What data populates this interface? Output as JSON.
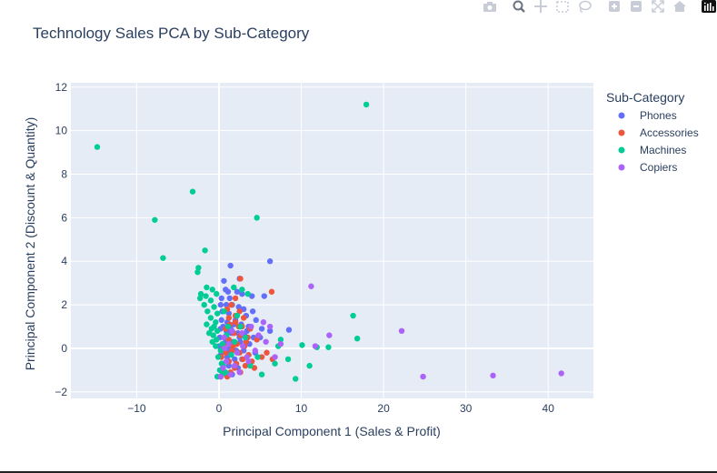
{
  "chart_data": {
    "type": "scatter",
    "title": "Technology Sales PCA by Sub-Category",
    "xlabel": "Principal Component 1 (Sales & Profit)",
    "ylabel": "Principal Component 2 (Discount & Quantity)",
    "xlim": [
      -18,
      45.5
    ],
    "ylim": [
      -2.3,
      12.2
    ],
    "xticks": [
      -10,
      0,
      10,
      20,
      30,
      40
    ],
    "yticks": [
      -2,
      0,
      2,
      4,
      6,
      8,
      10,
      12
    ],
    "grid": true,
    "legend_title": "Sub-Category",
    "legend_position": "top-right outside",
    "series": [
      {
        "name": "Phones",
        "color": "#636efa",
        "points": [
          [
            1.4,
            3.8
          ],
          [
            0.6,
            3.1
          ],
          [
            2.5,
            3.2
          ],
          [
            6.2,
            4.0
          ],
          [
            0.8,
            2.7
          ],
          [
            1.1,
            2.6
          ],
          [
            2.2,
            2.6
          ],
          [
            0.3,
            2.3
          ],
          [
            1.3,
            2.3
          ],
          [
            2.8,
            2.5
          ],
          [
            4,
            2.4
          ],
          [
            5.5,
            2.4
          ],
          [
            0.2,
            2.0
          ],
          [
            0.9,
            2.0
          ],
          [
            1.6,
            2.0
          ],
          [
            2.4,
            1.9
          ],
          [
            3.0,
            1.8
          ],
          [
            4.1,
            1.7
          ],
          [
            0.4,
            1.7
          ],
          [
            1.2,
            1.6
          ],
          [
            2.1,
            1.5
          ],
          [
            3.3,
            1.5
          ],
          [
            4.5,
            1.3
          ],
          [
            0.3,
            1.3
          ],
          [
            1.0,
            1.2
          ],
          [
            1.8,
            1.1
          ],
          [
            2.7,
            1.1
          ],
          [
            3.6,
            1.0
          ],
          [
            5.2,
            0.9
          ],
          [
            6.2,
            0.8
          ],
          [
            8.5,
            0.85
          ],
          [
            0.2,
            0.9
          ],
          [
            0.9,
            0.8
          ],
          [
            1.5,
            0.7
          ],
          [
            2.3,
            0.7
          ],
          [
            3.1,
            0.6
          ],
          [
            4.2,
            0.5
          ],
          [
            5.0,
            0.5
          ],
          [
            0.1,
            0.5
          ],
          [
            0.8,
            0.4
          ],
          [
            1.7,
            0.3
          ],
          [
            2.6,
            0.3
          ],
          [
            3.7,
            0.2
          ],
          [
            0.0,
            0.1
          ],
          [
            0.6,
            0.0
          ],
          [
            1.3,
            0.0
          ],
          [
            2.1,
            -0.1
          ],
          [
            3.0,
            -0.1
          ],
          [
            4.4,
            -0.2
          ],
          [
            0.2,
            -0.3
          ],
          [
            1.0,
            -0.4
          ],
          [
            1.9,
            -0.5
          ],
          [
            2.8,
            -0.5
          ],
          [
            0.4,
            -0.7
          ],
          [
            1.2,
            -0.8
          ],
          [
            2.3,
            -0.9
          ],
          [
            0.7,
            -1.1
          ],
          [
            1.6,
            -1.2
          ],
          [
            2.0,
            1.3
          ],
          [
            0.5,
            1.0
          ],
          [
            1.4,
            0.9
          ],
          [
            2.5,
            0.5
          ],
          [
            3.4,
            0.8
          ],
          [
            0.6,
            0.2
          ],
          [
            1.1,
            -0.2
          ]
        ]
      },
      {
        "name": "Accessories",
        "color": "#ef553b",
        "points": [
          [
            2.6,
            3.2
          ],
          [
            6.4,
            2.6
          ],
          [
            2.0,
            2.3
          ],
          [
            1.5,
            2.0
          ],
          [
            2.5,
            1.7
          ],
          [
            1.0,
            1.8
          ],
          [
            3.0,
            1.4
          ],
          [
            2.0,
            1.2
          ],
          [
            1.3,
            1.1
          ],
          [
            2.8,
            1.0
          ],
          [
            3.8,
            0.9
          ],
          [
            0.8,
            0.9
          ],
          [
            1.8,
            0.7
          ],
          [
            2.6,
            0.6
          ],
          [
            3.5,
            0.5
          ],
          [
            4.6,
            0.4
          ],
          [
            1.2,
            0.4
          ],
          [
            2.2,
            0.2
          ],
          [
            3.1,
            0.1
          ],
          [
            0.6,
            0.1
          ],
          [
            1.6,
            -0.1
          ],
          [
            2.5,
            -0.2
          ],
          [
            3.6,
            -0.3
          ],
          [
            5.2,
            -0.4
          ],
          [
            6.5,
            -0.5
          ],
          [
            0.3,
            -0.4
          ],
          [
            1.2,
            -0.6
          ],
          [
            2.1,
            -0.7
          ],
          [
            3.2,
            -0.8
          ],
          [
            4.3,
            -0.9
          ],
          [
            0.5,
            -1.0
          ],
          [
            1.4,
            -1.1
          ],
          [
            2.6,
            -1.1
          ],
          [
            0.2,
            -1.3
          ],
          [
            1.0,
            -1.3
          ],
          [
            2.0,
            1.5
          ],
          [
            1.2,
            1.4
          ],
          [
            3.3,
            0.3
          ],
          [
            2.9,
            -0.5
          ],
          [
            1.7,
            0.1
          ],
          [
            0.8,
            -0.2
          ],
          [
            2.4,
            1.0
          ],
          [
            4.0,
            -0.6
          ],
          [
            1.9,
            -0.9
          ],
          [
            5.8,
            -0.2
          ]
        ]
      },
      {
        "name": "Machines",
        "color": "#00cc96",
        "points": [
          [
            17.9,
            11.2
          ],
          [
            -14.8,
            9.25
          ],
          [
            -3.2,
            7.2
          ],
          [
            4.6,
            6.0
          ],
          [
            -7.8,
            5.9
          ],
          [
            -1.7,
            4.5
          ],
          [
            -6.8,
            4.15
          ],
          [
            -2.5,
            3.7
          ],
          [
            -2.6,
            3.5
          ],
          [
            -1.5,
            2.8
          ],
          [
            -2.2,
            2.5
          ],
          [
            -0.8,
            2.7
          ],
          [
            -1.6,
            2.4
          ],
          [
            -2.3,
            2.3
          ],
          [
            -1.0,
            2.2
          ],
          [
            -0.3,
            2.5
          ],
          [
            -1.8,
            2.0
          ],
          [
            -0.6,
            1.9
          ],
          [
            -1.4,
            1.7
          ],
          [
            -0.2,
            1.6
          ],
          [
            -1.0,
            1.4
          ],
          [
            -0.4,
            1.2
          ],
          [
            -1.5,
            1.1
          ],
          [
            -0.6,
            1.0
          ],
          [
            -0.2,
            0.8
          ],
          [
            -1.2,
            0.7
          ],
          [
            -0.7,
            0.6
          ],
          [
            -0.3,
            0.4
          ],
          [
            -0.8,
            0.3
          ],
          [
            -0.4,
            0.1
          ],
          [
            0.2,
            -0.1
          ],
          [
            -0.1,
            -0.4
          ],
          [
            0.3,
            -0.7
          ],
          [
            0.1,
            -1.0
          ],
          [
            0.4,
            -1.2
          ],
          [
            -0.2,
            -1.3
          ],
          [
            0.8,
            -1.1
          ],
          [
            0.5,
            -0.8
          ],
          [
            2.8,
            2.7
          ],
          [
            3.5,
            2.5
          ],
          [
            1.8,
            2.8
          ],
          [
            16.3,
            1.5
          ],
          [
            16.8,
            0.45
          ],
          [
            10.1,
            0.15
          ],
          [
            11.9,
            0.05
          ],
          [
            13.3,
            0.05
          ],
          [
            7.5,
            0.4
          ],
          [
            7.2,
            0.1
          ],
          [
            8.4,
            -0.5
          ],
          [
            11.0,
            -0.8
          ],
          [
            9.3,
            -1.4
          ],
          [
            5.2,
            -1.2
          ],
          [
            6.8,
            -0.7
          ],
          [
            3.8,
            -0.8
          ],
          [
            4.7,
            -0.4
          ],
          [
            2.6,
            1.0
          ],
          [
            1.9,
            0.3
          ],
          [
            0.9,
            0.6
          ],
          [
            1.5,
            -0.3
          ],
          [
            3.2,
            0.5
          ],
          [
            0.6,
            1.7
          ],
          [
            2.2,
            1.5
          ],
          [
            -0.9,
            0.9
          ],
          [
            0.4,
            0.2
          ],
          [
            1.1,
            1.0
          ]
        ]
      },
      {
        "name": "Copiers",
        "color": "#ab63fa",
        "points": [
          [
            11.2,
            2.85
          ],
          [
            22.2,
            0.8
          ],
          [
            24.8,
            -1.3
          ],
          [
            33.3,
            -1.25
          ],
          [
            41.6,
            -1.15
          ],
          [
            13.4,
            0.6
          ],
          [
            11.7,
            0.1
          ],
          [
            6.2,
            1.0
          ],
          [
            5.4,
            1.2
          ],
          [
            7.5,
            0.2
          ],
          [
            6.8,
            -0.4
          ],
          [
            4.8,
            0.6
          ],
          [
            3.9,
            1.0
          ],
          [
            2.8,
            0.7
          ],
          [
            1.6,
            0.8
          ],
          [
            0.6,
            0.5
          ],
          [
            1.2,
            0.2
          ],
          [
            2.2,
            -0.2
          ],
          [
            3.4,
            -0.4
          ],
          [
            0.9,
            -0.6
          ],
          [
            1.9,
            -0.8
          ],
          [
            0.5,
            -0.9
          ],
          [
            1.4,
            -1.2
          ],
          [
            0.2,
            -1.3
          ],
          [
            2.9,
            0.1
          ],
          [
            4.4,
            -0.1
          ],
          [
            3.6,
            -0.6
          ],
          [
            0.7,
            0.0
          ],
          [
            5.7,
            0.3
          ],
          [
            2.5,
            -1.1
          ]
        ]
      }
    ]
  },
  "modebar": {
    "icons": [
      "camera-icon",
      "zoom-icon",
      "pan-icon",
      "box-select-icon",
      "lasso-icon",
      "zoom-in-icon",
      "zoom-out-icon",
      "autoscale-icon",
      "home-icon",
      "plotly-logo-icon"
    ]
  }
}
